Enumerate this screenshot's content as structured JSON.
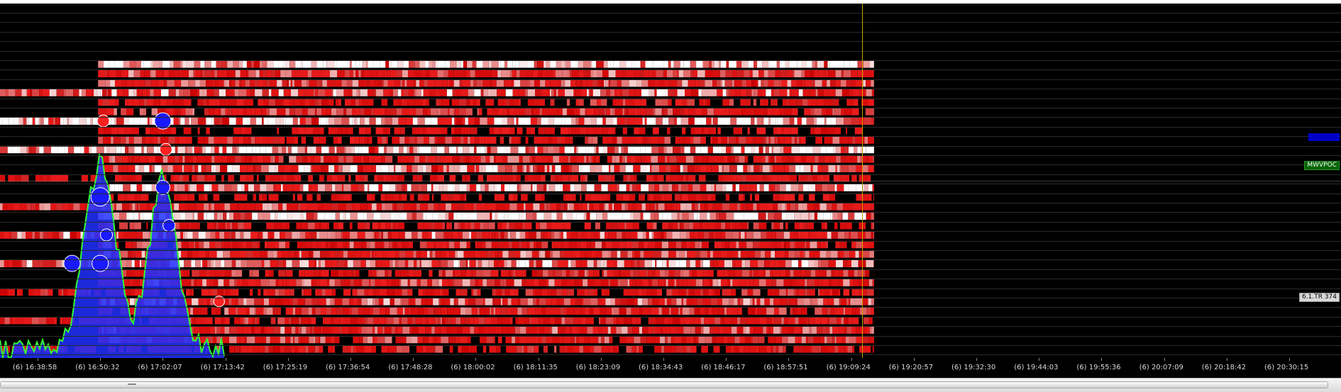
{
  "chart_data": {
    "type": "heatmap",
    "title": "",
    "xlabel": "",
    "ylabel": "",
    "x_ticks": [
      "(6) 16:38:58",
      "(6) 16:50:32",
      "(6) 17:02:07",
      "(6) 17:13:42",
      "(6) 17:25:19",
      "(6) 17:36:54",
      "(6) 17:48:28",
      "(6) 18:00:02",
      "(6) 18:11:35",
      "(6) 18:23:09",
      "(6) 18:34:43",
      "(6) 18:46:17",
      "(6) 18:57:51",
      "(6) 19:09:24",
      "(6) 19:20:57",
      "(6) 19:32:30",
      "(6) 19:44:03",
      "(6) 19:55:36",
      "(6) 20:07:09",
      "(6) 20:18:42",
      "(6) 20:30:15"
    ],
    "data_start_tick": 1,
    "data_end_tick": 13.4,
    "current_time_tick": 13.2,
    "price_levels": 34,
    "level_intensity": [
      0,
      0,
      0,
      0.95,
      0.55,
      0.6,
      0.7,
      0.4,
      0.5,
      0.85,
      0.3,
      0.45,
      0.9,
      0.5,
      0.75,
      0.35,
      0.8,
      0.3,
      0.55,
      0.95,
      0.4,
      0.65,
      0.5,
      0.6,
      0.7,
      0.45,
      0.55,
      0.4,
      0.6,
      0.5,
      0.45,
      0.55,
      0.5,
      0.4
    ],
    "trade_bubbles": [
      {
        "t": 0.55,
        "level": 24,
        "size": 2.5,
        "color": "blue"
      },
      {
        "t": 1.0,
        "level": 17,
        "size": 3,
        "color": "blue"
      },
      {
        "t": 1.0,
        "level": 24,
        "size": 2.5,
        "color": "blue"
      },
      {
        "t": 1.05,
        "level": 9,
        "size": 1.5,
        "color": "red"
      },
      {
        "t": 1.1,
        "level": 21,
        "size": 1.5,
        "color": "blue"
      },
      {
        "t": 2.0,
        "level": 9,
        "size": 2.5,
        "color": "blue"
      },
      {
        "t": 2.0,
        "level": 16,
        "size": 2,
        "color": "blue"
      },
      {
        "t": 2.05,
        "level": 12,
        "size": 1.5,
        "color": "red"
      },
      {
        "t": 2.1,
        "level": 20,
        "size": 1.5,
        "color": "blue"
      },
      {
        "t": 2.9,
        "level": 28,
        "size": 1.2,
        "color": "red"
      }
    ],
    "price_tags": {
      "mwvpoc": "MWVPOC",
      "tr": "6.1.TR 374"
    },
    "colors": {
      "background": "#000000",
      "heat_low": "#cc0000",
      "heat_high": "#ffffff",
      "bubble_buy": "#1a1aff",
      "bubble_sell": "#ff2020",
      "volume_line": "#33ff33",
      "volume_fill": "#2030ff",
      "time_marker": "#c9a000"
    }
  }
}
